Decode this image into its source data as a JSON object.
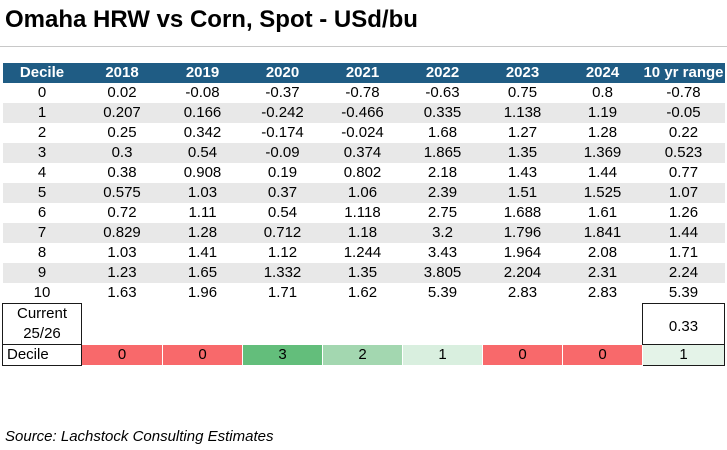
{
  "title": "Omaha HRW vs Corn, Spot - USd/bu",
  "headers": [
    "Decile",
    "2018",
    "2019",
    "2020",
    "2021",
    "2022",
    "2023",
    "2024",
    "10 yr range"
  ],
  "rows": [
    [
      "0",
      "0.02",
      "-0.08",
      "-0.37",
      "-0.78",
      "-0.63",
      "0.75",
      "0.8",
      "-0.78"
    ],
    [
      "1",
      "0.207",
      "0.166",
      "-0.242",
      "-0.466",
      "0.335",
      "1.138",
      "1.19",
      "-0.05"
    ],
    [
      "2",
      "0.25",
      "0.342",
      "-0.174",
      "-0.024",
      "1.68",
      "1.27",
      "1.28",
      "0.22"
    ],
    [
      "3",
      "0.3",
      "0.54",
      "-0.09",
      "0.374",
      "1.865",
      "1.35",
      "1.369",
      "0.523"
    ],
    [
      "4",
      "0.38",
      "0.908",
      "0.19",
      "0.802",
      "2.18",
      "1.43",
      "1.44",
      "0.77"
    ],
    [
      "5",
      "0.575",
      "1.03",
      "0.37",
      "1.06",
      "2.39",
      "1.51",
      "1.525",
      "1.07"
    ],
    [
      "6",
      "0.72",
      "1.11",
      "0.54",
      "1.118",
      "2.75",
      "1.688",
      "1.61",
      "1.26"
    ],
    [
      "7",
      "0.829",
      "1.28",
      "0.712",
      "1.18",
      "3.2",
      "1.796",
      "1.841",
      "1.44"
    ],
    [
      "8",
      "1.03",
      "1.41",
      "1.12",
      "1.244",
      "3.43",
      "1.964",
      "2.08",
      "1.71"
    ],
    [
      "9",
      "1.23",
      "1.65",
      "1.332",
      "1.35",
      "3.805",
      "2.204",
      "2.31",
      "2.24"
    ],
    [
      "10",
      "1.63",
      "1.96",
      "1.71",
      "1.62",
      "5.39",
      "2.83",
      "2.83",
      "5.39"
    ]
  ],
  "current": {
    "label_line1": "Current",
    "label_line2": "25/26",
    "value": "0.33"
  },
  "decile_row": {
    "label": "Decile",
    "values": [
      "0",
      "0",
      "3",
      "2",
      "1",
      "0",
      "0",
      "1"
    ],
    "colors": [
      "#f8696b",
      "#f8696b",
      "#63be7b",
      "#a3d7b0",
      "#d9efdf",
      "#f8696b",
      "#f8696b",
      "#e4f3e8"
    ]
  },
  "source": "Source: Lachstock Consulting Estimates"
}
